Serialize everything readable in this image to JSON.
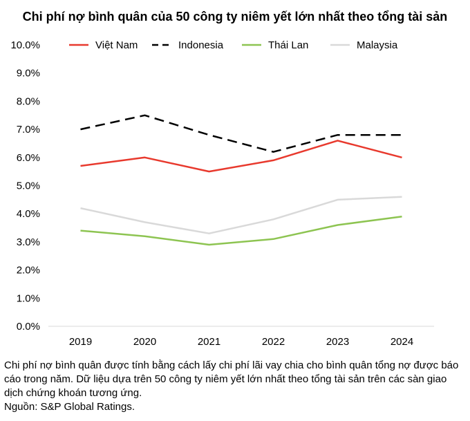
{
  "chart_data": {
    "type": "line",
    "title": "Chi phí nợ bình quân của 50 công ty niêm yết lớn nhất theo tổng tài sản",
    "categories": [
      "2019",
      "2020",
      "2021",
      "2022",
      "2023",
      "2024"
    ],
    "y_ticks": [
      "0.0%",
      "1.0%",
      "2.0%",
      "3.0%",
      "4.0%",
      "5.0%",
      "6.0%",
      "7.0%",
      "8.0%",
      "9.0%",
      "10.0%"
    ],
    "ylim": [
      0,
      10
    ],
    "y_unit": "%",
    "grid": false,
    "legend_position": "top",
    "series": [
      {
        "name": "Việt Nam",
        "color": "#e8392d",
        "dash": "solid",
        "values": [
          5.7,
          6.0,
          5.5,
          5.9,
          6.6,
          6.0
        ]
      },
      {
        "name": "Indonesia",
        "color": "#000000",
        "dash": "dashed",
        "values": [
          7.0,
          7.5,
          6.8,
          6.2,
          6.8,
          6.8
        ]
      },
      {
        "name": "Thái Lan",
        "color": "#8dc451",
        "dash": "solid",
        "values": [
          3.4,
          3.2,
          2.9,
          3.1,
          3.6,
          3.9
        ]
      },
      {
        "name": "Malaysia",
        "color": "#d9d9d9",
        "dash": "solid",
        "values": [
          4.2,
          3.7,
          3.3,
          3.8,
          4.5,
          4.6
        ]
      }
    ]
  },
  "note": {
    "description": "Chi phí nợ bình quân được tính bằng cách lấy chi phí lãi vay chia cho bình quân tổng nợ được báo cáo trong năm. Dữ liệu dựa trên 50 công ty niêm yết lớn nhất theo tổng tài sản trên các sàn giao dịch chứng khoán tương ứng.",
    "source": "Nguồn:  S&P Global Ratings."
  }
}
